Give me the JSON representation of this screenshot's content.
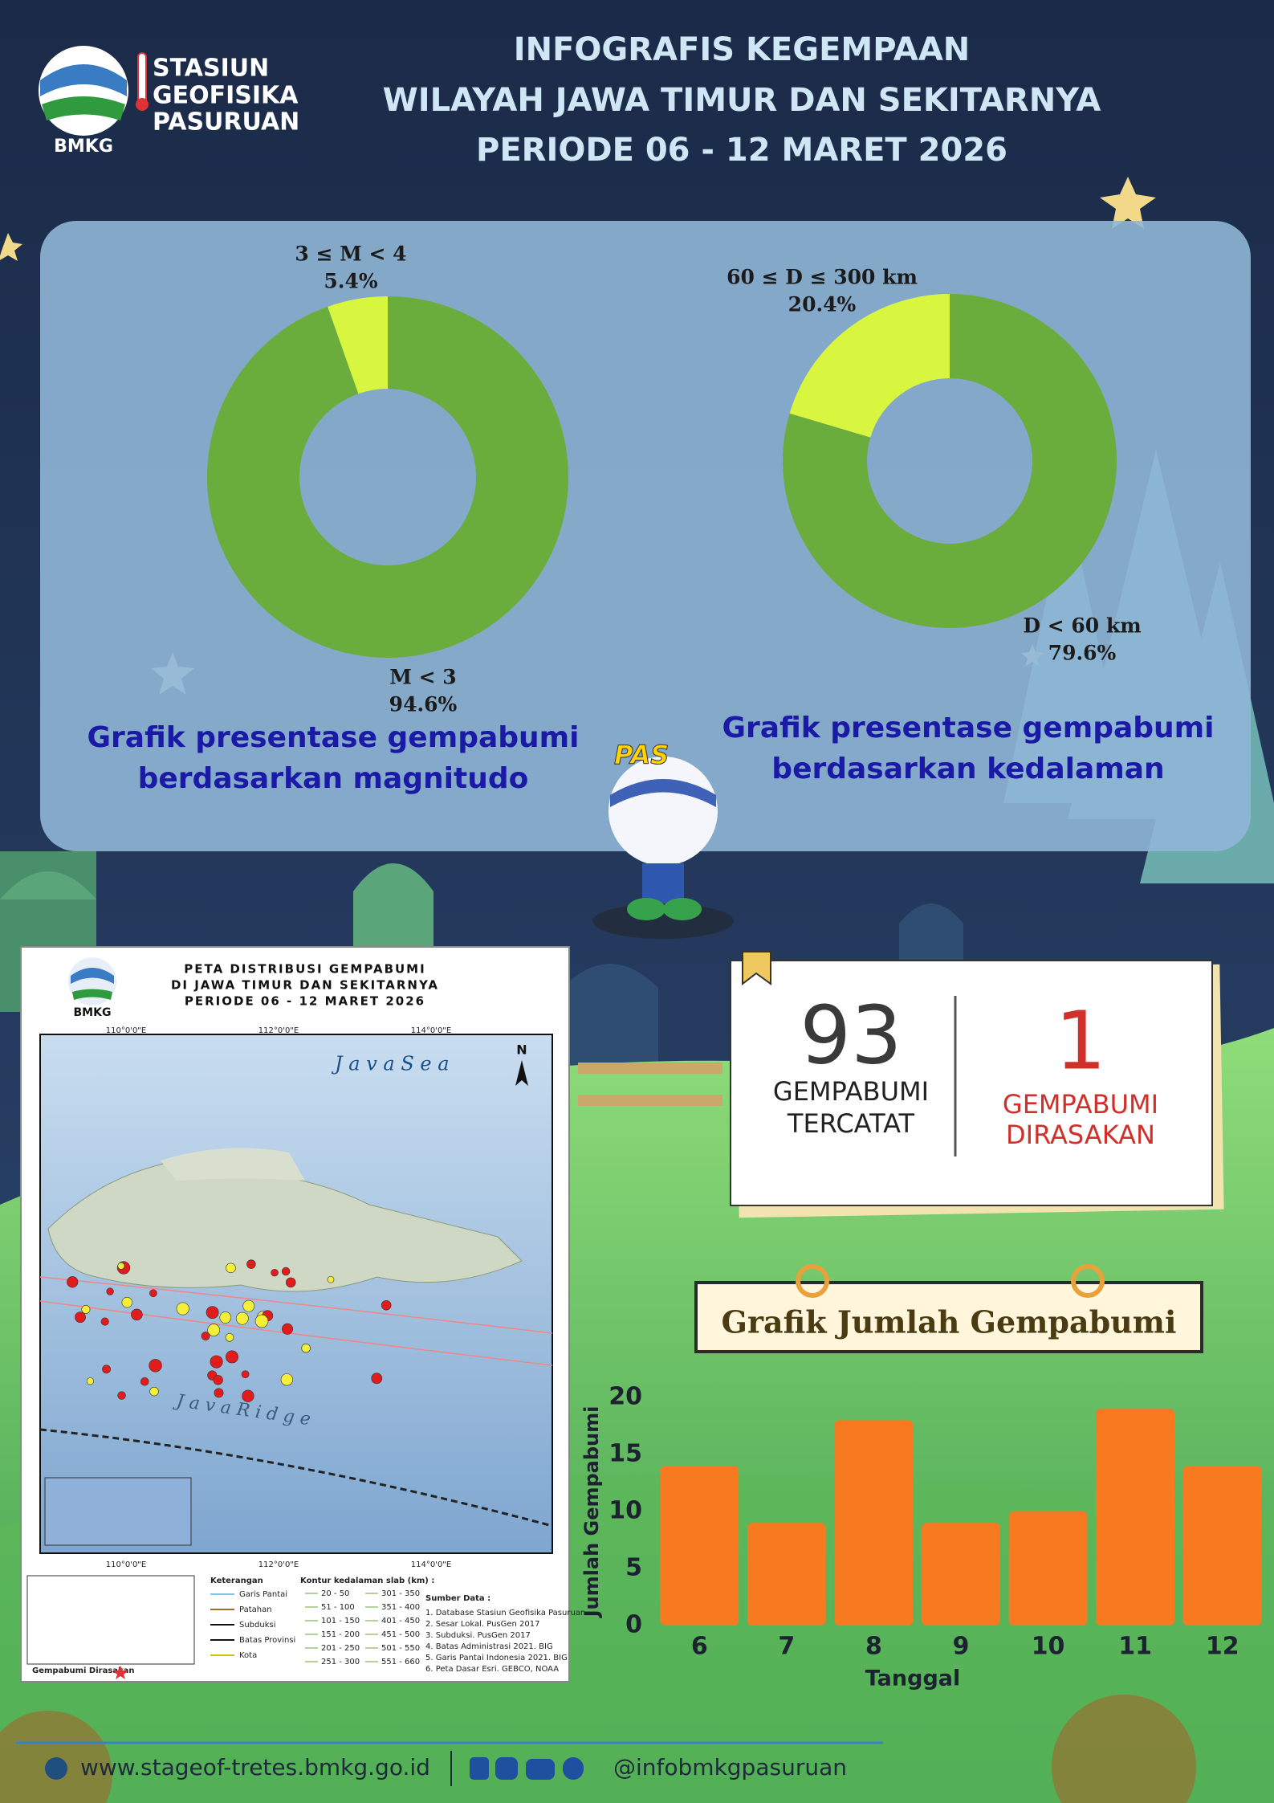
{
  "header": {
    "logo_text": "BMKG",
    "org": [
      "STASIUN",
      "GEOFISIKA",
      "PASURUAN"
    ],
    "title": [
      "INFOGRAFIS KEGEMPAAN",
      "WILAYAH JAWA TIMUR DAN SEKITARNYA",
      "PERIODE 06 - 12 MARET 2026"
    ]
  },
  "chart_data": [
    {
      "type": "pie",
      "donut": true,
      "title": [
        "Grafik presentase gempabumi",
        "berdasarkan magnitudo"
      ],
      "categories": [
        "M < 3",
        "3 ≤ M < 4"
      ],
      "values": [
        94.6,
        5.4
      ],
      "value_labels": [
        "94.6%",
        "5.4%"
      ],
      "colors": [
        "#6aad3c",
        "#d8f53f"
      ]
    },
    {
      "type": "pie",
      "donut": true,
      "title": [
        "Grafik presentase gempabumi",
        "berdasarkan kedalaman"
      ],
      "categories": [
        "D < 60 km",
        "60 ≤ D ≤ 300 km"
      ],
      "values": [
        79.6,
        20.4
      ],
      "value_labels": [
        "79.6%",
        "20.4%"
      ],
      "colors": [
        "#6aad3c",
        "#d8f53f"
      ]
    },
    {
      "type": "bar",
      "title": "Grafik Jumlah Gempabumi",
      "categories": [
        "6",
        "7",
        "8",
        "9",
        "10",
        "11",
        "12"
      ],
      "values": [
        14,
        9,
        18,
        9,
        10,
        19,
        14
      ],
      "color": "#f77a20",
      "ylim": [
        0,
        20
      ],
      "yticks": [
        0,
        5,
        10,
        15,
        20
      ],
      "xlabel": "Tanggal",
      "ylabel": "Jumlah Gempabumi"
    }
  ],
  "mascot": {
    "label": "PAS"
  },
  "summary": {
    "recorded": {
      "value": "93",
      "label": [
        "GEMPABUMI",
        "TERCATAT"
      ]
    },
    "felt": {
      "value": "1",
      "label": [
        "GEMPABUMI",
        "DIRASAKAN"
      ]
    }
  },
  "map": {
    "logo_text": "BMKG",
    "title": [
      "PETA DISTRIBUSI GEMPABUMI",
      "DI JAWA TIMUR DAN SEKITARNYA",
      "PERIODE 06 - 12 MARET 2026"
    ],
    "north": "N",
    "labels": [
      "J a v a   S e a",
      "J a v a   R i d g e"
    ],
    "lon_labels": [
      "110°0'0\"E",
      "112°0'0\"E",
      "114°0'0\"E"
    ],
    "legend": {
      "heading": "Keterangan",
      "items": [
        "Garis Pantai",
        "Patahan",
        "Subduksi",
        "Batas Provinsi",
        "Kota"
      ],
      "felt": "Gempabumi Dirasakan"
    },
    "contours": {
      "heading": "Kontur kedalaman slab (km) :",
      "items": [
        "20 - 50",
        "51 - 100",
        "101 - 150",
        "151 - 200",
        "201 - 250",
        "251 - 300",
        "301 - 350",
        "351 - 400",
        "401 - 450",
        "451 - 500",
        "501 - 550",
        "551 - 660"
      ]
    },
    "sources": {
      "heading": "Sumber Data :",
      "items": [
        "1. Database Stasiun Geofisika Pasuruan",
        "2. Sesar Lokal. PusGen 2017",
        "3. Subduksi. PusGen 2017",
        "4. Batas Administrasi 2021. BIG",
        "5. Garis Pantai Indonesia 2021. BIG",
        "6. Peta Dasar Esri. GEBCO, NOAA"
      ]
    }
  },
  "footer": {
    "website": "www.stageof-tretes.bmkg.go.id",
    "social": "@infobmkgpasuruan"
  }
}
